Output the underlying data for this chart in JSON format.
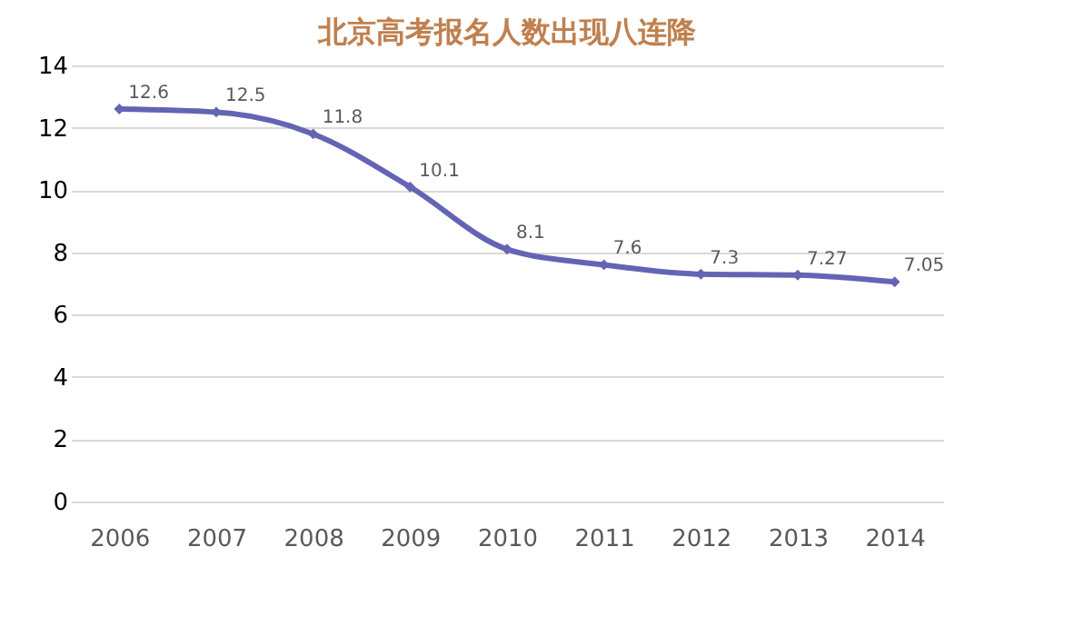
{
  "chart_data": {
    "type": "line",
    "title": "北京高考报名人数出现八连降",
    "categories": [
      "2006",
      "2007",
      "2008",
      "2009",
      "2010",
      "2011",
      "2012",
      "2013",
      "2014"
    ],
    "series": [
      {
        "color": "#6464b4",
        "values": [
          12.6,
          12.5,
          11.8,
          10.1,
          8.1,
          7.6,
          7.3,
          7.27,
          7.05
        ]
      }
    ],
    "ylim": [
      0,
      14
    ],
    "yticks": [
      0,
      2,
      4,
      6,
      8,
      10,
      12,
      14
    ],
    "grid": "y",
    "marker": "diamond",
    "line_style": "solid",
    "data_labels": true,
    "legend": false
  }
}
